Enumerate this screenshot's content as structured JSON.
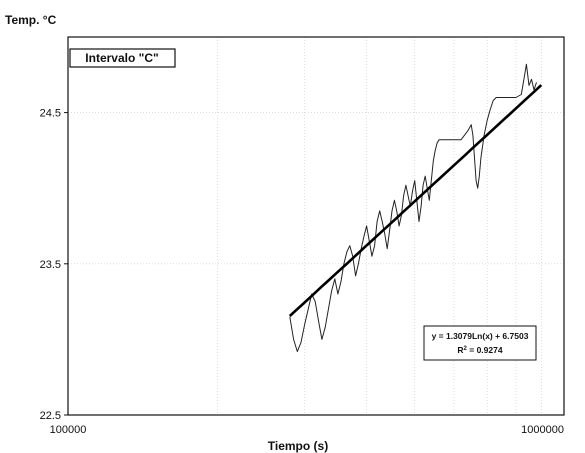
{
  "chart_data": {
    "type": "line",
    "ylabel": "Temp. °C",
    "xlabel": "Tiempo (s)",
    "x_scale": "log",
    "xlim": [
      100000,
      1000000
    ],
    "ylim": [
      22.5,
      25
    ],
    "x_ticks": [
      {
        "value": 100000,
        "label": "100000"
      },
      {
        "value": 1000000,
        "label": "1000000"
      }
    ],
    "y_ticks": [
      {
        "value": 22.5,
        "label": "22.5"
      },
      {
        "value": 23.5,
        "label": "23.5"
      },
      {
        "value": 24.5,
        "label": "24.5"
      }
    ],
    "grid": true,
    "legend_box": "Intervalo \"C\"",
    "equation": "y = 1.3079Ln(x) + 6.7503",
    "r_squared": "R",
    "r_squared_sup": "2",
    "r_squared_value": " = 0.9274",
    "trendline": {
      "a": 1.3079,
      "b": 6.7503,
      "x_start": 280000,
      "x_end": 900000
    },
    "series": [
      {
        "points": [
          [
            280000,
            23.15
          ],
          [
            285000,
            23.0
          ],
          [
            290000,
            22.92
          ],
          [
            295000,
            22.98
          ],
          [
            300000,
            23.1
          ],
          [
            305000,
            23.2
          ],
          [
            310000,
            23.3
          ],
          [
            315000,
            23.25
          ],
          [
            320000,
            23.12
          ],
          [
            325000,
            23.0
          ],
          [
            330000,
            23.08
          ],
          [
            335000,
            23.2
          ],
          [
            340000,
            23.32
          ],
          [
            345000,
            23.4
          ],
          [
            350000,
            23.3
          ],
          [
            355000,
            23.38
          ],
          [
            360000,
            23.5
          ],
          [
            365000,
            23.58
          ],
          [
            370000,
            23.62
          ],
          [
            375000,
            23.55
          ],
          [
            380000,
            23.42
          ],
          [
            385000,
            23.5
          ],
          [
            390000,
            23.6
          ],
          [
            395000,
            23.68
          ],
          [
            400000,
            23.75
          ],
          [
            405000,
            23.65
          ],
          [
            410000,
            23.55
          ],
          [
            415000,
            23.62
          ],
          [
            420000,
            23.78
          ],
          [
            425000,
            23.85
          ],
          [
            430000,
            23.78
          ],
          [
            435000,
            23.7
          ],
          [
            440000,
            23.6
          ],
          [
            445000,
            23.72
          ],
          [
            450000,
            23.85
          ],
          [
            455000,
            23.92
          ],
          [
            460000,
            23.85
          ],
          [
            465000,
            23.75
          ],
          [
            470000,
            23.82
          ],
          [
            475000,
            23.95
          ],
          [
            480000,
            24.02
          ],
          [
            485000,
            23.95
          ],
          [
            490000,
            23.88
          ],
          [
            495000,
            23.98
          ],
          [
            500000,
            24.05
          ],
          [
            505000,
            23.92
          ],
          [
            510000,
            23.78
          ],
          [
            515000,
            23.88
          ],
          [
            520000,
            24.02
          ],
          [
            525000,
            24.08
          ],
          [
            530000,
            24.0
          ],
          [
            535000,
            23.92
          ],
          [
            540000,
            24.05
          ],
          [
            545000,
            24.18
          ],
          [
            550000,
            24.25
          ],
          [
            555000,
            24.3
          ],
          [
            560000,
            24.32
          ],
          [
            600000,
            24.32
          ],
          [
            620000,
            24.32
          ],
          [
            640000,
            24.38
          ],
          [
            650000,
            24.42
          ],
          [
            655000,
            24.35
          ],
          [
            660000,
            24.2
          ],
          [
            665000,
            24.05
          ],
          [
            670000,
            24.0
          ],
          [
            675000,
            24.08
          ],
          [
            680000,
            24.2
          ],
          [
            690000,
            24.35
          ],
          [
            700000,
            24.45
          ],
          [
            710000,
            24.52
          ],
          [
            720000,
            24.58
          ],
          [
            730000,
            24.6
          ],
          [
            760000,
            24.6
          ],
          [
            800000,
            24.6
          ],
          [
            820000,
            24.62
          ],
          [
            830000,
            24.72
          ],
          [
            840000,
            24.82
          ],
          [
            845000,
            24.75
          ],
          [
            850000,
            24.68
          ],
          [
            860000,
            24.72
          ],
          [
            870000,
            24.65
          ],
          [
            880000,
            24.7
          ]
        ]
      }
    ]
  }
}
